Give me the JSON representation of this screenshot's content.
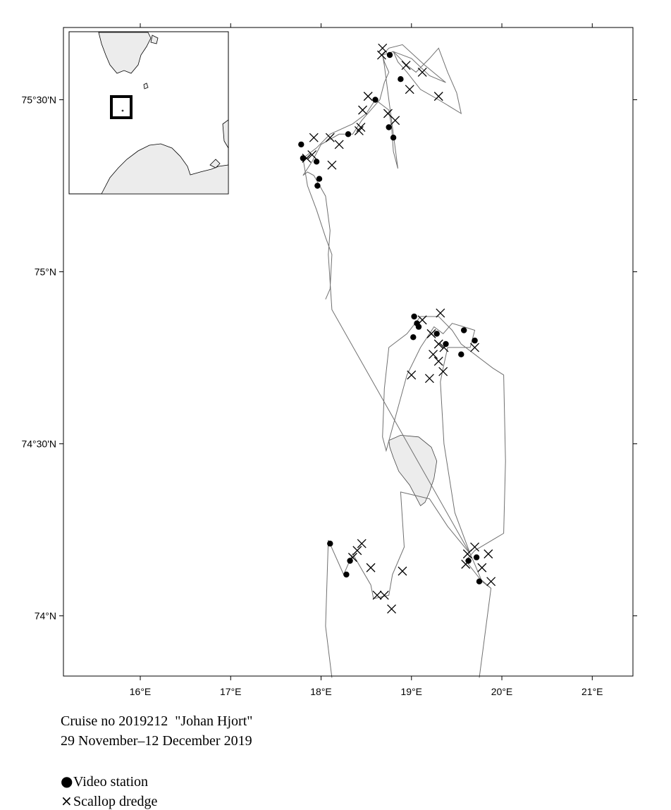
{
  "map": {
    "lon_range": [
      15.15,
      21.45
    ],
    "lat_range": [
      73.825,
      75.71
    ],
    "x_ticks": [
      {
        "value": 16,
        "label": "16°E"
      },
      {
        "value": 17,
        "label": "17°E"
      },
      {
        "value": 18,
        "label": "18°E"
      },
      {
        "value": 19,
        "label": "19°E"
      },
      {
        "value": 20,
        "label": "20°E"
      },
      {
        "value": 21,
        "label": "21°E"
      }
    ],
    "y_ticks": [
      {
        "value": 75.5,
        "label": "75°30'N"
      },
      {
        "value": 75.0,
        "label": "75°N"
      },
      {
        "value": 74.5,
        "label": "74°30'N"
      },
      {
        "value": 74.0,
        "label": "74°N"
      }
    ],
    "colors": {
      "track": "#707070",
      "land": "#ececec",
      "frame": "#000000",
      "marker": "#000000"
    },
    "island": [
      [
        18.75,
        74.51
      ],
      [
        18.88,
        74.525
      ],
      [
        19.08,
        74.52
      ],
      [
        19.22,
        74.49
      ],
      [
        19.28,
        74.45
      ],
      [
        19.25,
        74.4
      ],
      [
        19.2,
        74.36
      ],
      [
        19.15,
        74.33
      ],
      [
        19.1,
        74.32
      ],
      [
        19.07,
        74.335
      ],
      [
        18.98,
        74.38
      ],
      [
        18.86,
        74.42
      ],
      [
        18.8,
        74.46
      ],
      [
        18.76,
        74.49
      ],
      [
        18.75,
        74.51
      ]
    ],
    "track": [
      [
        18.12,
        73.82
      ],
      [
        18.05,
        73.97
      ],
      [
        18.08,
        74.22
      ],
      [
        18.25,
        74.12
      ],
      [
        18.35,
        74.18
      ],
      [
        18.55,
        74.09
      ],
      [
        18.58,
        74.05
      ],
      [
        18.75,
        74.06
      ],
      [
        18.79,
        74.12
      ],
      [
        18.92,
        74.2
      ],
      [
        18.88,
        74.36
      ],
      [
        19.2,
        74.34
      ],
      [
        19.4,
        74.26
      ],
      [
        19.65,
        74.18
      ],
      [
        19.7,
        74.15
      ],
      [
        19.78,
        74.1
      ],
      [
        19.88,
        74.08
      ],
      [
        19.75,
        73.82
      ],
      [
        19.88,
        74.08
      ],
      [
        19.75,
        74.11
      ],
      [
        19.6,
        74.16
      ],
      [
        19.7,
        74.19
      ],
      [
        20.02,
        74.24
      ],
      [
        20.04,
        74.45
      ],
      [
        20.02,
        74.7
      ],
      [
        19.9,
        74.72
      ],
      [
        19.7,
        74.76
      ],
      [
        19.55,
        74.79
      ],
      [
        19.45,
        74.83
      ],
      [
        19.3,
        74.87
      ],
      [
        19.1,
        74.87
      ],
      [
        18.95,
        74.82
      ],
      [
        18.75,
        74.78
      ],
      [
        18.7,
        74.66
      ],
      [
        18.68,
        74.52
      ],
      [
        18.72,
        74.48
      ],
      [
        18.72,
        74.48
      ],
      [
        18.95,
        74.7
      ],
      [
        19.1,
        74.78
      ],
      [
        19.25,
        74.84
      ],
      [
        19.35,
        74.82
      ],
      [
        19.45,
        74.85
      ],
      [
        19.58,
        74.84
      ],
      [
        19.7,
        74.83
      ],
      [
        19.65,
        74.78
      ],
      [
        19.4,
        74.78
      ],
      [
        19.35,
        74.72
      ],
      [
        19.32,
        74.68
      ],
      [
        19.36,
        74.5
      ],
      [
        19.48,
        74.3
      ],
      [
        19.65,
        74.18
      ],
      [
        18.12,
        74.89
      ],
      [
        18.08,
        75.05
      ],
      [
        18.1,
        75.12
      ],
      [
        18.05,
        75.22
      ],
      [
        17.92,
        75.28
      ],
      [
        17.85,
        75.29
      ],
      [
        17.8,
        75.28
      ],
      [
        17.9,
        75.32
      ],
      [
        18.0,
        75.37
      ],
      [
        18.2,
        75.4
      ],
      [
        18.35,
        75.4
      ],
      [
        18.45,
        75.44
      ],
      [
        18.55,
        75.47
      ],
      [
        18.65,
        75.5
      ],
      [
        18.7,
        75.55
      ],
      [
        18.75,
        75.58
      ],
      [
        18.7,
        75.61
      ],
      [
        18.68,
        75.63
      ],
      [
        18.8,
        75.64
      ],
      [
        18.95,
        75.6
      ],
      [
        19.05,
        75.58
      ],
      [
        19.2,
        75.62
      ],
      [
        19.3,
        75.65
      ],
      [
        19.4,
        75.58
      ],
      [
        19.5,
        75.52
      ],
      [
        19.55,
        75.46
      ],
      [
        19.55,
        75.46
      ],
      [
        19.3,
        75.5
      ],
      [
        19.1,
        75.53
      ],
      [
        18.95,
        75.58
      ],
      [
        18.85,
        75.61
      ],
      [
        18.8,
        75.64
      ],
      [
        19.0,
        75.62
      ],
      [
        19.2,
        75.57
      ],
      [
        19.38,
        75.55
      ],
      [
        19.15,
        75.6
      ],
      [
        18.9,
        75.66
      ],
      [
        18.75,
        75.65
      ],
      [
        18.68,
        75.63
      ],
      [
        18.7,
        75.6
      ],
      [
        18.85,
        75.3
      ],
      [
        18.8,
        75.35
      ],
      [
        18.78,
        75.42
      ],
      [
        18.75,
        75.47
      ],
      [
        18.6,
        75.5
      ],
      [
        18.5,
        75.46
      ],
      [
        18.35,
        75.43
      ],
      [
        18.1,
        75.4
      ],
      [
        17.95,
        75.36
      ],
      [
        17.8,
        75.33
      ],
      [
        17.85,
        75.25
      ],
      [
        17.95,
        75.18
      ],
      [
        18.05,
        75.1
      ],
      [
        18.12,
        75.05
      ],
      [
        18.1,
        74.95
      ],
      [
        18.05,
        74.92
      ]
    ],
    "video_stations": [
      [
        18.76,
        75.63
      ],
      [
        18.88,
        75.56
      ],
      [
        18.6,
        75.5
      ],
      [
        18.75,
        75.42
      ],
      [
        18.8,
        75.39
      ],
      [
        18.3,
        75.4
      ],
      [
        17.78,
        75.37
      ],
      [
        17.8,
        75.33
      ],
      [
        17.95,
        75.32
      ],
      [
        17.98,
        75.27
      ],
      [
        17.96,
        75.25
      ],
      [
        19.03,
        74.87
      ],
      [
        19.06,
        74.85
      ],
      [
        19.08,
        74.84
      ],
      [
        19.28,
        74.82
      ],
      [
        19.02,
        74.81
      ],
      [
        19.38,
        74.79
      ],
      [
        19.55,
        74.76
      ],
      [
        19.58,
        74.83
      ],
      [
        19.7,
        74.8
      ],
      [
        18.1,
        74.21
      ],
      [
        18.32,
        74.16
      ],
      [
        18.28,
        74.12
      ],
      [
        19.63,
        74.16
      ],
      [
        19.72,
        74.17
      ],
      [
        19.75,
        74.1
      ]
    ],
    "scallop_dredges": [
      [
        18.68,
        75.65
      ],
      [
        18.67,
        75.63
      ],
      [
        18.94,
        75.6
      ],
      [
        19.12,
        75.58
      ],
      [
        18.98,
        75.53
      ],
      [
        19.3,
        75.51
      ],
      [
        18.52,
        75.51
      ],
      [
        18.46,
        75.47
      ],
      [
        18.74,
        75.46
      ],
      [
        18.82,
        75.44
      ],
      [
        18.44,
        75.42
      ],
      [
        18.42,
        75.41
      ],
      [
        18.1,
        75.39
      ],
      [
        18.2,
        75.37
      ],
      [
        17.92,
        75.39
      ],
      [
        17.9,
        75.34
      ],
      [
        17.84,
        75.33
      ],
      [
        18.12,
        75.31
      ],
      [
        19.32,
        74.88
      ],
      [
        19.12,
        74.86
      ],
      [
        19.22,
        74.82
      ],
      [
        19.3,
        74.79
      ],
      [
        19.36,
        74.78
      ],
      [
        19.24,
        74.76
      ],
      [
        19.3,
        74.74
      ],
      [
        19.7,
        74.78
      ],
      [
        19.35,
        74.71
      ],
      [
        19.2,
        74.69
      ],
      [
        19.0,
        74.7
      ],
      [
        18.45,
        74.21
      ],
      [
        18.4,
        74.19
      ],
      [
        18.35,
        74.17
      ],
      [
        18.55,
        74.14
      ],
      [
        18.9,
        74.13
      ],
      [
        18.7,
        74.06
      ],
      [
        18.62,
        74.06
      ],
      [
        18.78,
        74.02
      ],
      [
        19.7,
        74.2
      ],
      [
        19.62,
        74.18
      ],
      [
        19.85,
        74.18
      ],
      [
        19.6,
        74.15
      ],
      [
        19.78,
        74.14
      ],
      [
        19.88,
        74.1
      ]
    ]
  },
  "caption": {
    "cruise": "Cruise no 2019212  \"Johan Hjort\"",
    "dates": "29 November–12 December 2019"
  },
  "legend": {
    "video_symbol": "●",
    "video_label": "Video station",
    "dredge_symbol": "×",
    "dredge_label": "Scallop dredge"
  }
}
